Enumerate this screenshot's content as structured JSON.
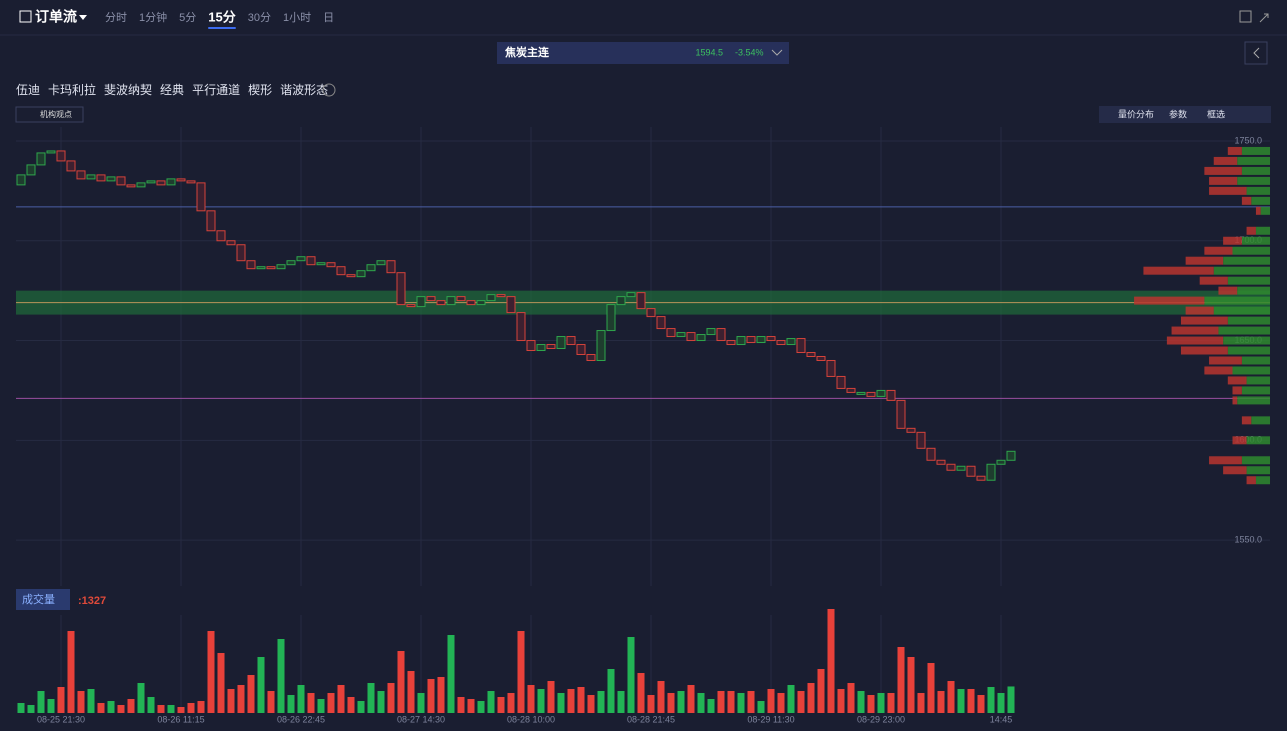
{
  "toolbar": {
    "title": "订单流",
    "intervals": [
      "分时",
      "1分钟",
      "5分",
      "15分",
      "30分",
      "1小时",
      "日"
    ],
    "active_interval": 3
  },
  "contract": {
    "name": "焦炭主连",
    "price": "1594.5",
    "change": "-3.54%"
  },
  "tools": [
    "伍迪",
    "卡玛利拉",
    "斐波纳契",
    "经典",
    "平行通道",
    "楔形",
    "谐波形态"
  ],
  "badge": "机构观点",
  "right_buttons": [
    "量价分布",
    "参数",
    "框选"
  ],
  "chart_data": [
    {
      "type": "candlestick",
      "categories": [
        null,
        null,
        null,
        null,
        "08-25 21:30",
        null,
        null,
        null,
        null,
        null,
        null,
        null,
        null,
        null,
        null,
        null,
        "08-26 11:15",
        null,
        null,
        null,
        null,
        null,
        null,
        null,
        null,
        null,
        null,
        null,
        "08-26 22:45",
        null,
        null,
        null,
        null,
        null,
        null,
        null,
        null,
        null,
        null,
        null,
        "08-27 14:30",
        null,
        null,
        null,
        null,
        null,
        null,
        null,
        null,
        null,
        null,
        "08-28 10:00",
        null,
        null,
        null,
        null,
        null,
        null,
        null,
        null,
        null,
        null,
        null,
        "08-28 21:45",
        null,
        null,
        null,
        null,
        null,
        null,
        null,
        null,
        null,
        null,
        null,
        "08-29 11:30",
        null,
        null,
        null,
        null,
        null,
        null,
        null,
        null,
        null,
        null,
        "08-29 23:00",
        null,
        null,
        null,
        null,
        null,
        null,
        null,
        null,
        null,
        null,
        null,
        "14:45",
        null
      ],
      "open": [
        1728,
        1733,
        1738,
        1744,
        1745,
        1740,
        1735,
        1731,
        1733,
        1730,
        1732,
        1728,
        1727,
        1729,
        1730,
        1728,
        1731,
        1730,
        1729,
        1715,
        1705,
        1700,
        1698,
        1690,
        1686,
        1687,
        1686,
        1688,
        1690,
        1692,
        1688,
        1689,
        1687,
        1683,
        1682,
        1685,
        1688,
        1690,
        1684,
        1668,
        1667,
        1672,
        1670,
        1668,
        1672,
        1670,
        1668,
        1670,
        1673,
        1672,
        1664,
        1650,
        1645,
        1648,
        1646,
        1652,
        1648,
        1643,
        1640,
        1655,
        1668,
        1672,
        1674,
        1666,
        1662,
        1656,
        1652,
        1654,
        1650,
        1653,
        1656,
        1650,
        1648,
        1652,
        1649,
        1652,
        1650,
        1648,
        1651,
        1644,
        1642,
        1640,
        1632,
        1626,
        1624,
        1624,
        1622,
        1625,
        1620,
        1606,
        1604,
        1596,
        1590,
        1588,
        1585,
        1587,
        1582,
        1580,
        1588,
        1590
      ],
      "close": [
        1733,
        1738,
        1744,
        1745,
        1740,
        1735,
        1731,
        1733,
        1730,
        1732,
        1728,
        1727,
        1729,
        1730,
        1728,
        1731,
        1730,
        1729,
        1715,
        1705,
        1700,
        1698,
        1690,
        1686,
        1687,
        1686,
        1688,
        1690,
        1692,
        1688,
        1689,
        1687,
        1683,
        1682,
        1685,
        1688,
        1690,
        1684,
        1668,
        1667,
        1672,
        1670,
        1668,
        1672,
        1670,
        1668,
        1670,
        1673,
        1672,
        1664,
        1650,
        1645,
        1648,
        1646,
        1652,
        1648,
        1643,
        1640,
        1655,
        1668,
        1672,
        1674,
        1666,
        1662,
        1656,
        1652,
        1654,
        1650,
        1653,
        1656,
        1650,
        1648,
        1652,
        1649,
        1652,
        1650,
        1648,
        1651,
        1644,
        1642,
        1640,
        1632,
        1626,
        1624,
        1624,
        1622,
        1625,
        1620,
        1606,
        1604,
        1596,
        1590,
        1588,
        1585,
        1587,
        1582,
        1580,
        1588,
        1590,
        1594.5
      ],
      "ylim": [
        1527,
        1757
      ],
      "yticks": [
        {
          "value": 1750,
          "label": "1750.0"
        },
        {
          "value": 1700,
          "label": "1700.0"
        },
        {
          "value": 1650,
          "label": "1650.0"
        },
        {
          "value": 1600,
          "label": "1600.0"
        },
        {
          "value": 1550,
          "label": "1550.0"
        }
      ],
      "hlines": [
        {
          "value": 1717,
          "color": "#4b5ea6"
        },
        {
          "value": 1669,
          "color": "#b9955a"
        },
        {
          "value": 1621,
          "color": "#9a4fa0"
        }
      ],
      "band": {
        "ylim": [
          1663,
          1675
        ],
        "color": "#1f6b3a"
      },
      "colors": {
        "up": "#2fa64c",
        "down": "#d5433a"
      }
    },
    {
      "type": "bar",
      "title": "成交量",
      "last_label": ":1327",
      "values": [
        500,
        400,
        1100,
        700,
        1300,
        4100,
        1100,
        1200,
        500,
        600,
        400,
        700,
        1500,
        800,
        400,
        400,
        300,
        500,
        600,
        4100,
        3000,
        1200,
        1400,
        1900,
        2800,
        1100,
        3700,
        900,
        1400,
        1000,
        700,
        1000,
        1400,
        800,
        600,
        1500,
        1100,
        1500,
        3100,
        2100,
        1000,
        1700,
        1800,
        3900,
        800,
        700,
        600,
        1100,
        800,
        1000,
        4100,
        1400,
        1200,
        1600,
        1000,
        1200,
        1300,
        900,
        1100,
        2200,
        1100,
        3800,
        2000,
        900,
        1600,
        1000,
        1100,
        1400,
        1000,
        700,
        1100,
        1100,
        1000,
        1100,
        600,
        1200,
        1000,
        1400,
        1100,
        1500,
        2200,
        5200,
        1200,
        1500,
        1100,
        900,
        1000,
        1000,
        3300,
        2800,
        1000,
        2500,
        1100,
        1600,
        1200,
        1200,
        900,
        1300,
        1000,
        1327
      ],
      "ylim": [
        0,
        5000
      ]
    },
    {
      "type": "hbar",
      "levels": [
        1745,
        1740,
        1735,
        1730,
        1725,
        1720,
        1715,
        1705,
        1700,
        1695,
        1690,
        1685,
        1680,
        1675,
        1670,
        1665,
        1660,
        1655,
        1650,
        1645,
        1640,
        1635,
        1630,
        1625,
        1620,
        1610,
        1600,
        1590,
        1585,
        1580
      ],
      "buy": [
        30,
        35,
        30,
        35,
        25,
        20,
        10,
        15,
        30,
        40,
        50,
        60,
        45,
        35,
        70,
        60,
        45,
        55,
        50,
        45,
        30,
        40,
        25,
        30,
        35,
        20,
        25,
        30,
        25,
        15
      ],
      "sell": [
        15,
        25,
        40,
        30,
        40,
        10,
        5,
        10,
        20,
        30,
        40,
        75,
        30,
        20,
        75,
        30,
        50,
        50,
        60,
        50,
        35,
        30,
        20,
        10,
        5,
        10,
        15,
        35,
        25,
        10
      ],
      "xlim": [
        0,
        160
      ],
      "buy_color": "#2f8a2f",
      "sell_color": "#b8352f"
    }
  ]
}
